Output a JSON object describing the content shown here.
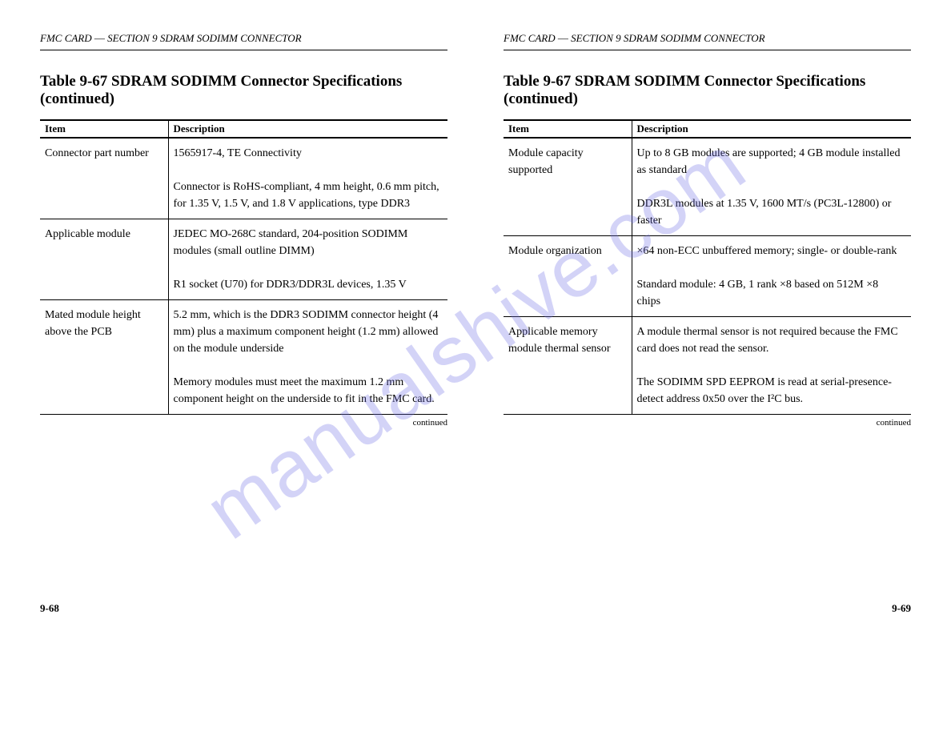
{
  "watermark": {
    "text": "manualshive.com",
    "color": "rgba(110,110,230,0.30)"
  },
  "page_left": {
    "page_number": "9-68",
    "breadcrumb_parts": [
      "FMC CARD",
      "SECTION 9 SDRAM SODIMM CONNECTOR"
    ],
    "section_title": "Table 9-67 SDRAM SODIMM Connector Specifications (continued)",
    "table": {
      "columns": [
        "Item",
        "Description"
      ],
      "continued_label": "continued",
      "rows": [
        {
          "item": "Connector part number",
          "desc_lines": [
            "1565917-4, TE Connectivity",
            "Connector is RoHS-compliant, 4 mm height, 0.6 mm pitch, for 1.35 V, 1.5 V, and 1.8 V applications, type DDR3"
          ]
        },
        {
          "item": "Applicable module",
          "desc_lines": [
            "JEDEC MO-268C standard, 204-position SODIMM modules (small outline DIMM)",
            "R1 socket (U70) for DDR3/DDR3L devices, 1.35 V"
          ]
        },
        {
          "item": "Mated module height above the PCB",
          "desc_lines": [
            "5.2 mm, which is the DDR3 SODIMM connector height (4 mm) plus a maximum component height (1.2 mm) allowed on the module underside",
            "Memory modules must meet the maximum 1.2 mm component height on the underside to fit in the FMC card."
          ]
        }
      ]
    }
  },
  "page_right": {
    "page_number": "9-69",
    "breadcrumb_parts": [
      "FMC CARD",
      "SECTION 9 SDRAM SODIMM CONNECTOR"
    ],
    "section_title": "Table 9-67 SDRAM SODIMM Connector Specifications (continued)",
    "table": {
      "columns": [
        "Item",
        "Description"
      ],
      "continued_label": "continued",
      "rows": [
        {
          "item": "Module capacity supported",
          "desc_lines": [
            "Up to 8 GB modules are supported; 4 GB module installed as standard",
            "DDR3L modules at 1.35 V, 1600 MT/s (PC3L-12800) or faster"
          ]
        },
        {
          "item": "Module organization",
          "desc_lines": [
            "×64 non-ECC unbuffered memory; single- or double-rank",
            "Standard module: 4 GB, 1 rank ×8 based on 512M ×8 chips"
          ]
        },
        {
          "item": "Applicable memory module thermal sensor",
          "desc_lines": [
            "A module thermal sensor is not required because the FMC card does not read the sensor.",
            "The SODIMM SPD EEPROM is read at serial-presence-detect address 0x50 over the I²C bus."
          ]
        }
      ]
    }
  }
}
